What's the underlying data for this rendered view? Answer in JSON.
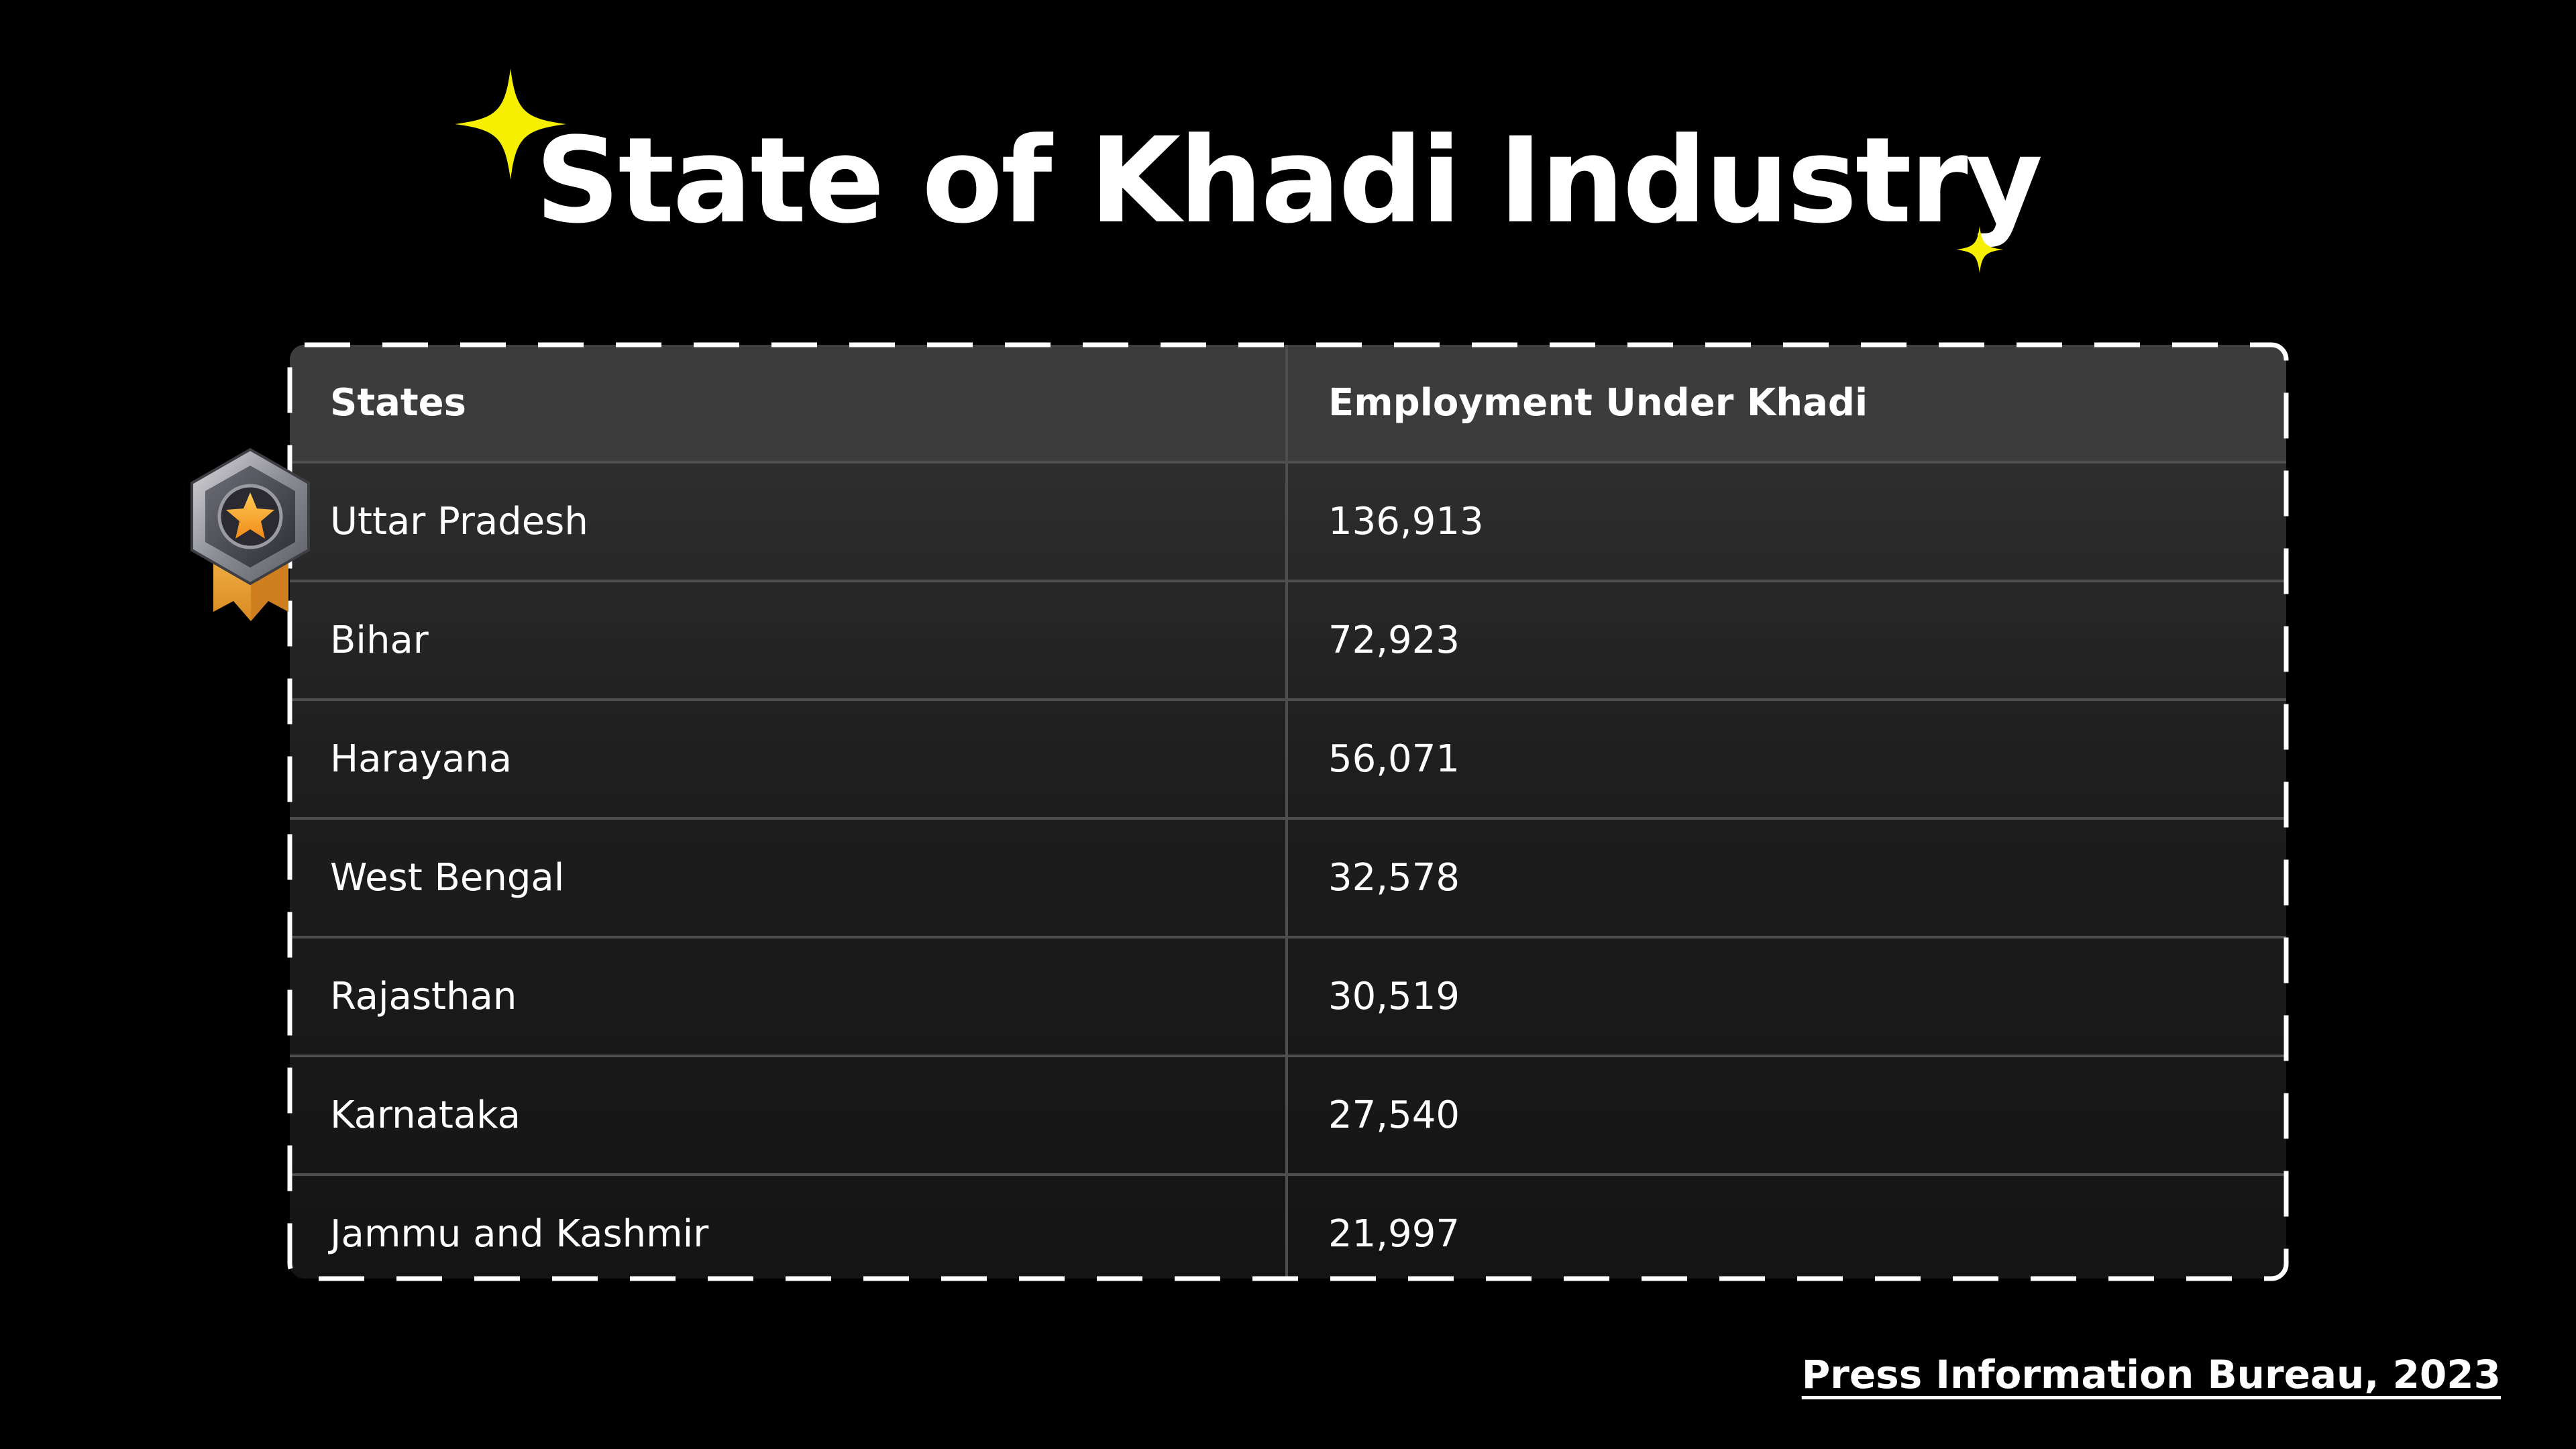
{
  "title": "State of Khadi Industry",
  "source": "Press Information Bureau, 2023",
  "colors": {
    "background": "#000000",
    "accent_sparkle": "#f6f000",
    "text": "#ffffff",
    "medal_ribbon": "#e9a43a",
    "medal_star": "#f5a623"
  },
  "icons": [
    "sparkle-icon",
    "medal-icon"
  ],
  "chart_data": {
    "type": "table",
    "title": "State of Khadi Industry",
    "columns": [
      "States",
      "Employment Under Khadi"
    ],
    "rows": [
      {
        "state": "Uttar Pradesh",
        "value": "136,913"
      },
      {
        "state": "Bihar",
        "value": "72,923"
      },
      {
        "state": "Harayana",
        "value": "56,071"
      },
      {
        "state": "West Bengal",
        "value": "32,578"
      },
      {
        "state": "Rajasthan",
        "value": "30,519"
      },
      {
        "state": "Karnataka",
        "value": "27,540"
      },
      {
        "state": "Jammu and Kashmir",
        "value": "21,997"
      }
    ]
  }
}
